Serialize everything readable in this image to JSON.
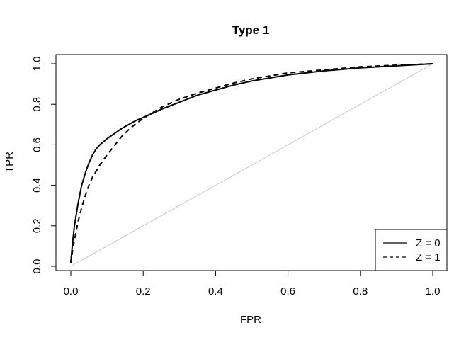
{
  "chart_data": {
    "type": "line",
    "title": "Type 1",
    "xlabel": "FPR",
    "ylabel": "TPR",
    "xlim": [
      0,
      1
    ],
    "ylim": [
      0,
      1
    ],
    "xticks": [
      0.0,
      0.2,
      0.4,
      0.6,
      0.8,
      1.0
    ],
    "yticks": [
      0.0,
      0.2,
      0.4,
      0.6,
      0.8,
      1.0
    ],
    "xtick_labels": [
      "0.0",
      "0.2",
      "0.4",
      "0.6",
      "0.8",
      "1.0"
    ],
    "ytick_labels": [
      "0.0",
      "0.2",
      "0.4",
      "0.6",
      "0.8",
      "1.0"
    ],
    "grid": false,
    "legend_position": "bottom-right",
    "reference_line": {
      "x": [
        0,
        1
      ],
      "y": [
        0,
        1
      ],
      "color": "#c8c8c8"
    },
    "series": [
      {
        "name": "Z = 0",
        "linestyle": "solid",
        "color": "#000000",
        "x": [
          0.0,
          0.005,
          0.01,
          0.02,
          0.03,
          0.04,
          0.05,
          0.06,
          0.07,
          0.08,
          0.09,
          0.1,
          0.12,
          0.14,
          0.16,
          0.18,
          0.2,
          0.25,
          0.3,
          0.35,
          0.4,
          0.45,
          0.5,
          0.6,
          0.7,
          0.8,
          0.9,
          1.0
        ],
        "y": [
          0.02,
          0.12,
          0.2,
          0.31,
          0.4,
          0.46,
          0.51,
          0.55,
          0.58,
          0.6,
          0.615,
          0.63,
          0.655,
          0.68,
          0.7,
          0.72,
          0.735,
          0.775,
          0.81,
          0.845,
          0.87,
          0.895,
          0.915,
          0.945,
          0.965,
          0.98,
          0.99,
          1.0
        ]
      },
      {
        "name": "Z = 1",
        "linestyle": "dashed",
        "color": "#000000",
        "x": [
          0.0,
          0.005,
          0.01,
          0.02,
          0.03,
          0.04,
          0.05,
          0.06,
          0.07,
          0.08,
          0.09,
          0.1,
          0.12,
          0.14,
          0.16,
          0.18,
          0.2,
          0.25,
          0.3,
          0.35,
          0.4,
          0.45,
          0.5,
          0.6,
          0.7,
          0.8,
          0.9,
          1.0
        ],
        "y": [
          0.015,
          0.08,
          0.13,
          0.22,
          0.29,
          0.35,
          0.4,
          0.44,
          0.47,
          0.5,
          0.525,
          0.55,
          0.595,
          0.64,
          0.675,
          0.705,
          0.73,
          0.785,
          0.825,
          0.855,
          0.88,
          0.905,
          0.925,
          0.955,
          0.97,
          0.985,
          0.993,
          1.0
        ]
      }
    ]
  }
}
